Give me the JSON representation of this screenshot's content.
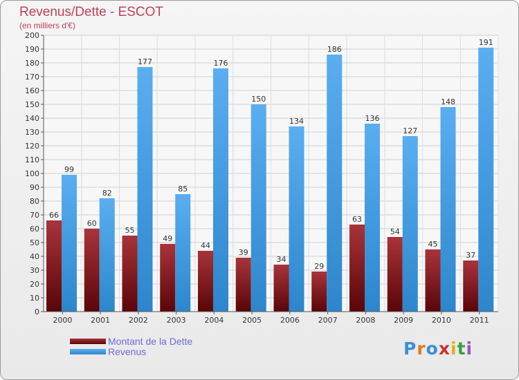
{
  "chart_data": {
    "type": "bar",
    "title": "Revenus/Dette - ESCOT",
    "subtitle": "(en milliers d'€)",
    "categories": [
      "2000",
      "2001",
      "2002",
      "2003",
      "2004",
      "2005",
      "2006",
      "2007",
      "2008",
      "2009",
      "2010",
      "2011"
    ],
    "series": [
      {
        "name": "Montant de la Dette",
        "values": [
          66,
          60,
          55,
          49,
          44,
          39,
          34,
          29,
          63,
          54,
          45,
          37
        ],
        "color": "#7a0f12"
      },
      {
        "name": "Revenus",
        "values": [
          99,
          82,
          177,
          85,
          176,
          150,
          134,
          186,
          136,
          127,
          148,
          191
        ],
        "color": "#3f9ae0"
      }
    ],
    "ylim": [
      0,
      200
    ],
    "ytick_step": 10,
    "grid": true,
    "legend_position": "bottom-left"
  },
  "branding": {
    "logo_text": "Proxiti",
    "logo_colors": [
      "#3a8fd8",
      "#e07a20",
      "#3a8fd8",
      "#d03030",
      "#e0b020",
      "#3aa040",
      "#a050c0"
    ]
  }
}
